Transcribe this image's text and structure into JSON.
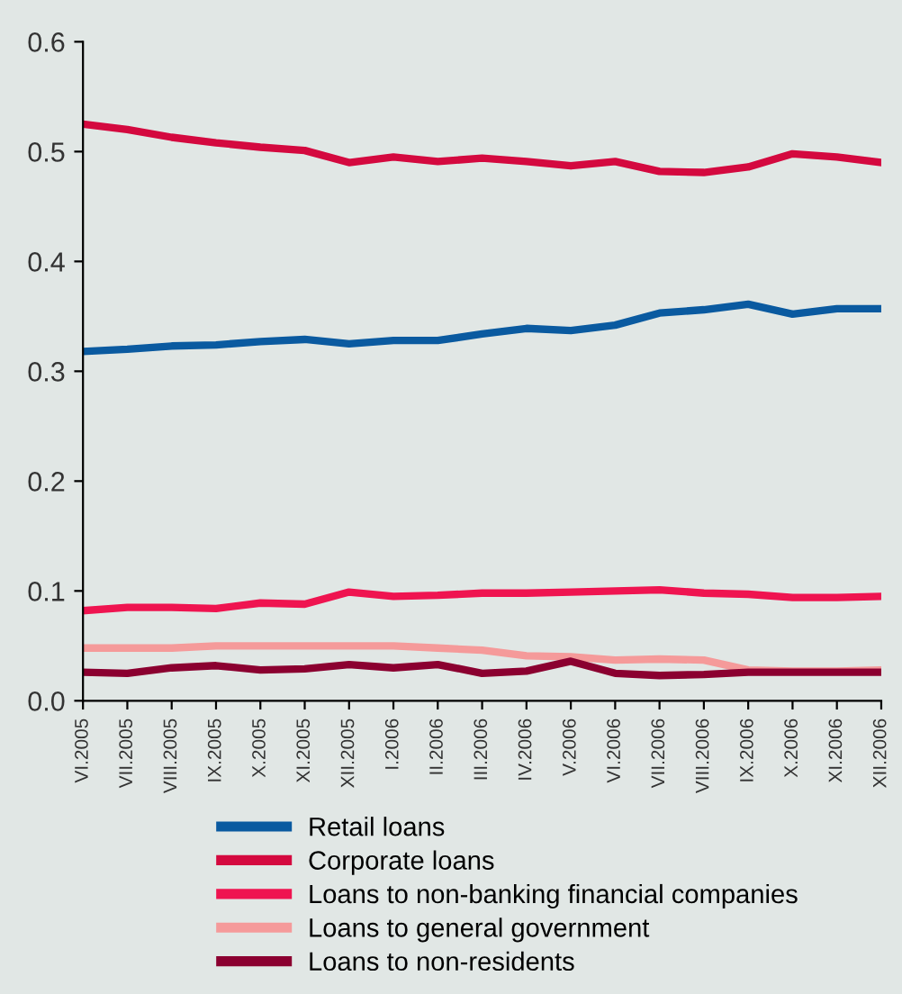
{
  "chart_data": {
    "type": "line",
    "categories": [
      "VI.2005",
      "VII.2005",
      "VIII.2005",
      "IX.2005",
      "X.2005",
      "XI.2005",
      "XII.2005",
      "I.2006",
      "II.2006",
      "III.2006",
      "IV.2006",
      "V.2006",
      "VI.2006",
      "VII.2006",
      "VIII.2006",
      "IX.2006",
      "X.2006",
      "XI.2006",
      "XII.2006"
    ],
    "series": [
      {
        "name": "Retail loans",
        "color": "#0a5aa0",
        "values": [
          0.318,
          0.32,
          0.323,
          0.324,
          0.327,
          0.329,
          0.325,
          0.328,
          0.328,
          0.334,
          0.339,
          0.337,
          0.342,
          0.353,
          0.356,
          0.361,
          0.352,
          0.357,
          0.357
        ]
      },
      {
        "name": "Corporate loans",
        "color": "#d4093f",
        "values": [
          0.525,
          0.52,
          0.513,
          0.508,
          0.504,
          0.501,
          0.49,
          0.495,
          0.491,
          0.494,
          0.491,
          0.487,
          0.491,
          0.482,
          0.481,
          0.486,
          0.498,
          0.495,
          0.49
        ]
      },
      {
        "name": "Loans to non-banking financial companies",
        "color": "#ef1450",
        "values": [
          0.082,
          0.085,
          0.085,
          0.084,
          0.089,
          0.088,
          0.099,
          0.095,
          0.096,
          0.098,
          0.098,
          0.099,
          0.1,
          0.101,
          0.098,
          0.097,
          0.094,
          0.094,
          0.095
        ]
      },
      {
        "name": "Loans to general government",
        "color": "#f59a9a",
        "values": [
          0.048,
          0.048,
          0.048,
          0.05,
          0.05,
          0.05,
          0.05,
          0.05,
          0.048,
          0.046,
          0.041,
          0.04,
          0.037,
          0.038,
          0.037,
          0.028,
          0.027,
          0.027,
          0.028
        ]
      },
      {
        "name": "Loans to non-residents",
        "color": "#8b0030",
        "values": [
          0.026,
          0.025,
          0.03,
          0.032,
          0.028,
          0.029,
          0.033,
          0.03,
          0.033,
          0.025,
          0.027,
          0.036,
          0.025,
          0.023,
          0.024,
          0.026,
          0.026,
          0.026,
          0.026
        ]
      }
    ],
    "ylim": [
      0,
      0.6
    ],
    "yticks": [
      {
        "value": 0,
        "label": "0.0"
      },
      0.1,
      0.2,
      0.3,
      0.4,
      0.5,
      0.6
    ],
    "grid": false,
    "legend": "bottom",
    "marker": "none",
    "line_style": "solid"
  }
}
